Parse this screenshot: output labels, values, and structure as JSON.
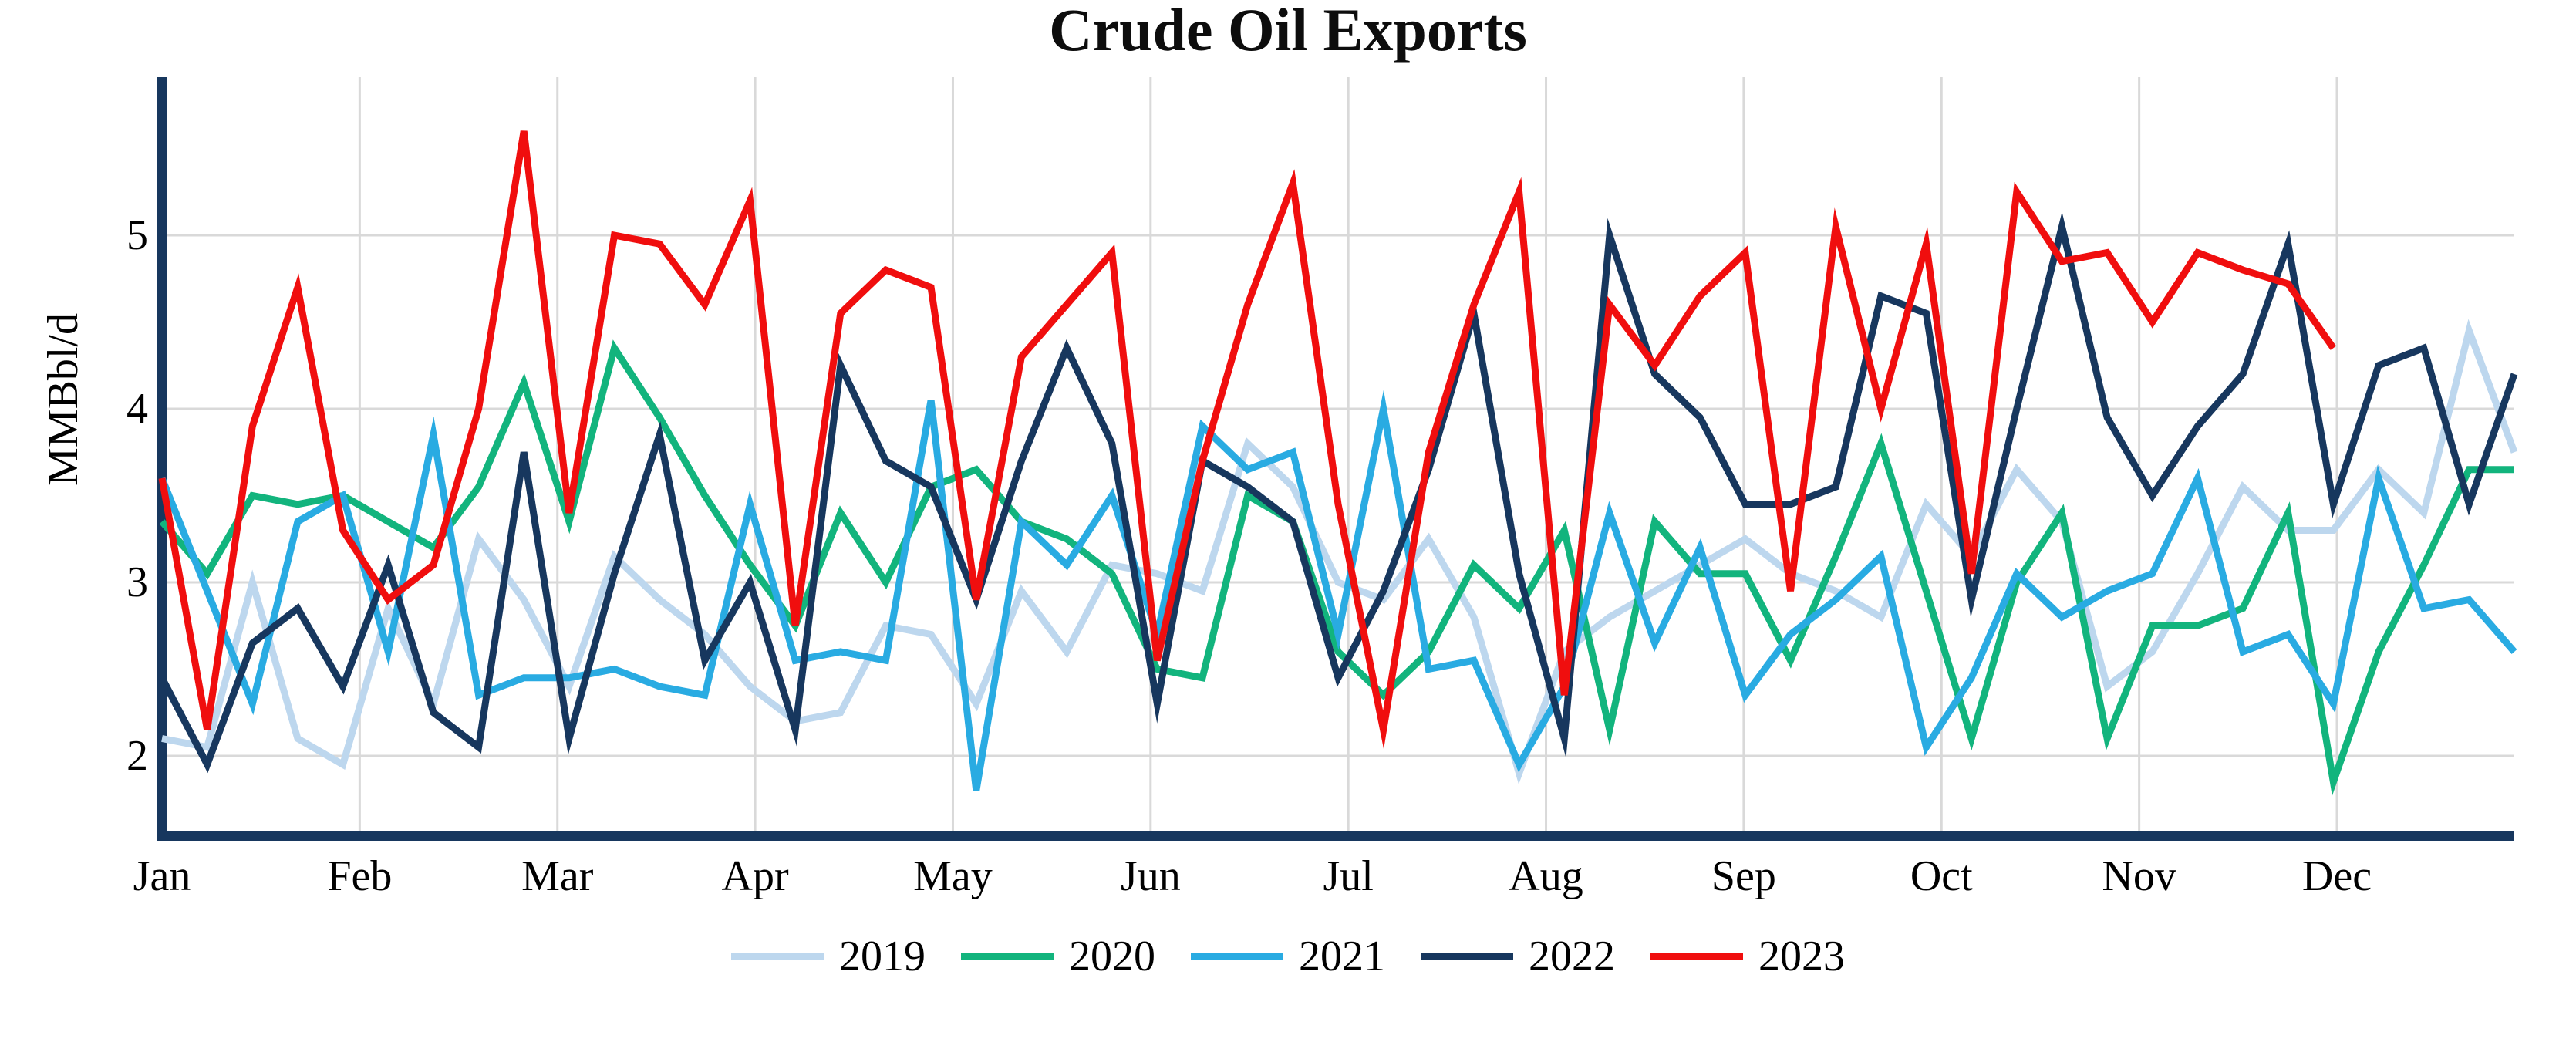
{
  "title": "Crude Oil Exports",
  "y_axis_label": "MMBbl/d",
  "colors": {
    "axis": "#17375E",
    "gridline": "#D9D9D9",
    "background": "#FFFFFF",
    "text": "#000000"
  },
  "chart_data": {
    "type": "line",
    "title": "Crude Oil Exports",
    "xlabel": "",
    "ylabel": "MMBbl/d",
    "x_categories": [
      "Jan",
      "Feb",
      "Mar",
      "Apr",
      "May",
      "Jun",
      "Jul",
      "Aug",
      "Sep",
      "Oct",
      "Nov",
      "Dec"
    ],
    "x_unit": "weekly points, 53 per full year (Jan through late Dec)",
    "y_ticks": [
      2,
      3,
      4,
      5
    ],
    "ylim": [
      1.55,
      5.92
    ],
    "grid": true,
    "legend_position": "bottom",
    "series": [
      {
        "name": "2019",
        "color": "#BDD7EE",
        "values": [
          2.1,
          2.05,
          3.0,
          2.1,
          1.95,
          2.85,
          2.3,
          3.25,
          2.9,
          2.4,
          3.15,
          2.9,
          2.7,
          2.4,
          2.2,
          2.25,
          2.75,
          2.7,
          2.3,
          2.95,
          2.6,
          3.1,
          3.05,
          2.95,
          3.8,
          3.55,
          3.0,
          2.9,
          3.25,
          2.8,
          1.9,
          2.6,
          2.8,
          2.95,
          3.1,
          3.25,
          3.05,
          2.95,
          2.8,
          3.45,
          3.15,
          3.65,
          3.35,
          2.4,
          2.6,
          3.05,
          3.55,
          3.3,
          3.3,
          3.65,
          3.4,
          4.45,
          3.75
        ]
      },
      {
        "name": "2020",
        "color": "#12B47D",
        "values": [
          3.35,
          3.05,
          3.5,
          3.45,
          3.5,
          3.35,
          3.2,
          3.55,
          4.15,
          3.35,
          4.35,
          3.95,
          3.5,
          3.1,
          2.75,
          3.4,
          3.0,
          3.55,
          3.65,
          3.35,
          3.25,
          3.05,
          2.5,
          2.45,
          3.5,
          3.35,
          2.6,
          2.35,
          2.6,
          3.1,
          2.85,
          3.3,
          2.15,
          3.35,
          3.05,
          3.05,
          2.55,
          3.15,
          3.8,
          2.95,
          2.1,
          3.0,
          3.4,
          2.1,
          2.75,
          2.75,
          2.85,
          3.4,
          1.85,
          2.6,
          3.1,
          3.65,
          3.65
        ]
      },
      {
        "name": "2021",
        "color": "#29ABE2",
        "values": [
          3.6,
          2.95,
          2.3,
          3.35,
          3.5,
          2.6,
          3.85,
          2.35,
          2.45,
          2.45,
          2.5,
          2.4,
          2.35,
          3.45,
          2.55,
          2.6,
          2.55,
          4.05,
          1.8,
          3.35,
          3.1,
          3.5,
          2.7,
          3.9,
          3.65,
          3.75,
          2.7,
          4.0,
          2.5,
          2.55,
          1.95,
          2.4,
          3.4,
          2.65,
          3.2,
          2.35,
          2.7,
          2.9,
          3.15,
          2.05,
          2.45,
          3.05,
          2.8,
          2.95,
          3.05,
          3.6,
          2.6,
          2.7,
          2.3,
          3.6,
          2.85,
          2.9,
          2.6
        ]
      },
      {
        "name": "2022",
        "color": "#17375E",
        "values": [
          2.45,
          1.95,
          2.65,
          2.85,
          2.4,
          3.1,
          2.25,
          2.05,
          3.75,
          2.1,
          3.05,
          3.85,
          2.55,
          3.0,
          2.15,
          4.25,
          3.7,
          3.55,
          2.9,
          3.7,
          4.35,
          3.8,
          2.3,
          3.7,
          3.55,
          3.35,
          2.45,
          2.95,
          3.65,
          4.55,
          3.05,
          2.1,
          5.0,
          4.2,
          3.95,
          3.45,
          3.45,
          3.55,
          4.65,
          4.55,
          2.9,
          4.0,
          5.05,
          3.95,
          3.5,
          3.9,
          4.2,
          4.95,
          3.45,
          4.25,
          4.35,
          3.45,
          4.2
        ]
      },
      {
        "name": "2023",
        "color": "#F00E0E",
        "values": [
          3.6,
          2.15,
          3.9,
          4.7,
          3.3,
          2.9,
          3.1,
          4.0,
          5.6,
          3.4,
          5.0,
          4.95,
          4.6,
          5.2,
          2.75,
          4.55,
          4.8,
          4.7,
          2.9,
          4.3,
          4.6,
          4.9,
          2.55,
          3.7,
          4.6,
          5.3,
          3.45,
          2.15,
          3.75,
          4.6,
          5.25,
          2.35,
          4.6,
          4.25,
          4.65,
          4.9,
          2.95,
          5.05,
          4.0,
          4.95,
          3.05,
          5.25,
          4.85,
          4.9,
          4.5,
          4.9,
          4.8,
          4.72,
          4.35
        ]
      }
    ]
  }
}
